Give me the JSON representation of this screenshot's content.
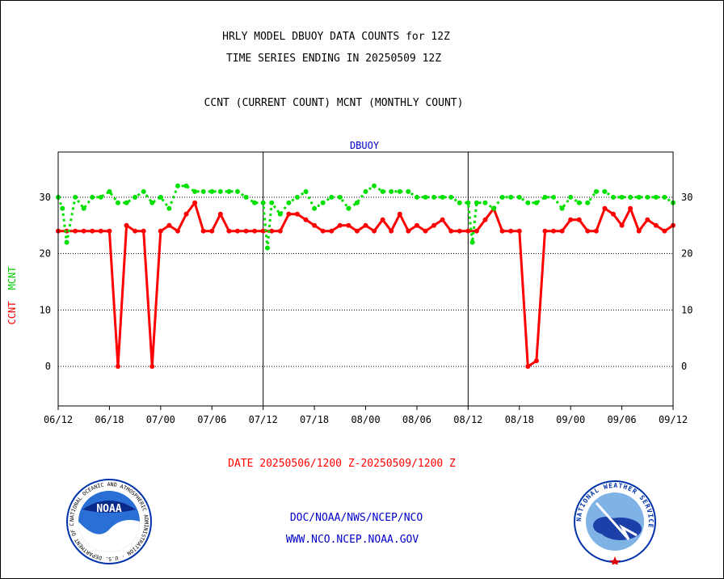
{
  "title_line1": "HRLY MODEL DBUOY DATA COUNTS for 12Z",
  "title_line2": "TIME SERIES ENDING IN 20250509 12Z",
  "subtitle": "CCNT (CURRENT COUNT) MCNT (MONTHLY COUNT)",
  "date_range": "DATE 20250506/1200 Z-20250509/1200 Z",
  "footer_line1": "DOC/NOAA/NWS/NCEP/NCO",
  "footer_line2": "WWW.NCO.NCEP.NOAA.GOV",
  "noaa_logo_text": "NOAA",
  "noaa_ring_text": "NATIONAL OCEANIC AND ATMOSPHERIC ADMINISTRATION · U.S. DEPARTMENT OF COMMERCE",
  "nws_ring_text": "NATIONAL WEATHER SERVICE",
  "colors": {
    "ccnt": "#ff0000",
    "mcnt": "#00e000",
    "panel_title": "#0000cc",
    "footer": "#0000cc"
  },
  "chart_data": {
    "type": "line",
    "panel_title": "DBUOY",
    "ylabel_ccnt": "CCNT",
    "ylabel_mcnt": "MCNT",
    "ylim": [
      -7,
      38
    ],
    "yticks": [
      0,
      10,
      20,
      30
    ],
    "grid": true,
    "x_ticks": [
      "06/12",
      "06/18",
      "07/00",
      "07/06",
      "07/12",
      "07/18",
      "08/00",
      "08/06",
      "08/12",
      "08/18",
      "09/00",
      "09/06",
      "09/12"
    ],
    "x_range": [
      0,
      72
    ],
    "series": [
      {
        "name": "CCNT",
        "color": "#ff0000",
        "x": [
          0,
          1,
          2,
          3,
          4,
          5,
          6,
          7,
          8,
          9,
          10,
          11,
          12,
          13,
          14,
          15,
          16,
          17,
          18,
          19,
          20,
          21,
          22,
          23,
          24,
          25,
          26,
          27,
          28,
          29,
          30,
          31,
          32,
          33,
          34,
          35,
          36,
          37,
          38,
          39,
          40,
          41,
          42,
          43,
          44,
          45,
          46,
          47,
          48,
          49,
          50,
          51,
          52,
          53,
          54,
          55,
          56,
          57,
          58,
          59,
          60,
          61,
          62,
          63,
          64,
          65,
          66,
          67,
          68,
          69,
          70,
          71,
          72
        ],
        "values": [
          24,
          24,
          24,
          24,
          24,
          24,
          24,
          0,
          25,
          24,
          24,
          0,
          24,
          25,
          24,
          27,
          29,
          24,
          24,
          27,
          24,
          24,
          24,
          24,
          24,
          24,
          24,
          27,
          27,
          26,
          25,
          24,
          24,
          25,
          25,
          24,
          25,
          24,
          26,
          24,
          27,
          24,
          25,
          24,
          25,
          26,
          24,
          24,
          24,
          24,
          26,
          28,
          24,
          24,
          24,
          0,
          1,
          24,
          24,
          24,
          26,
          26,
          24,
          24,
          28,
          27,
          25,
          28,
          24,
          26,
          25,
          24,
          25
        ]
      },
      {
        "name": "MCNT",
        "color": "#00e000",
        "x": [
          0,
          0.5,
          1,
          2,
          3,
          4,
          5,
          6,
          7,
          8,
          9,
          10,
          11,
          12,
          13,
          14,
          15,
          16,
          17,
          18,
          19,
          20,
          21,
          22,
          23,
          24,
          24.5,
          25,
          26,
          27,
          28,
          29,
          30,
          31,
          32,
          33,
          34,
          35,
          36,
          37,
          38,
          39,
          40,
          41,
          42,
          43,
          44,
          45,
          46,
          47,
          48,
          48.5,
          49,
          50,
          51,
          52,
          53,
          54,
          55,
          56,
          57,
          58,
          59,
          60,
          61,
          62,
          63,
          64,
          65,
          66,
          67,
          68,
          69,
          70,
          71,
          72
        ],
        "values": [
          30,
          28,
          22,
          30,
          28,
          30,
          30,
          31,
          29,
          29,
          30,
          31,
          29,
          30,
          28,
          32,
          32,
          31,
          31,
          31,
          31,
          31,
          31,
          30,
          29,
          29,
          21,
          29,
          27,
          29,
          30,
          31,
          28,
          29,
          30,
          30,
          28,
          29,
          31,
          32,
          31,
          31,
          31,
          31,
          30,
          30,
          30,
          30,
          30,
          29,
          29,
          22,
          29,
          29,
          28,
          30,
          30,
          30,
          29,
          29,
          30,
          30,
          28,
          30,
          29,
          29,
          31,
          31,
          30,
          30,
          30,
          30,
          30,
          30,
          30,
          29
        ]
      }
    ]
  }
}
